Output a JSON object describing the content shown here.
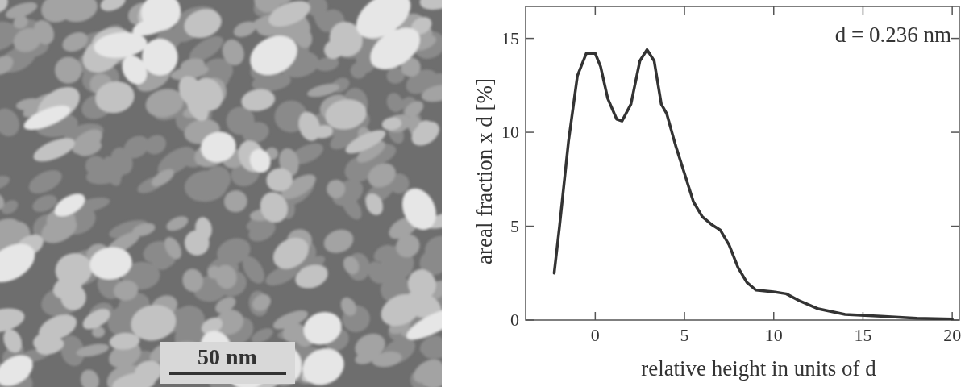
{
  "chart_data": {
    "type": "line",
    "x_label": "relative height in units of d",
    "y_label": "areal fraction x d  [%]",
    "annotation": "d = 0.236 nm",
    "x": [
      -2.3,
      -2.0,
      -1.5,
      -1.0,
      -0.5,
      0.0,
      0.3,
      0.7,
      1.2,
      1.5,
      2.0,
      2.5,
      2.9,
      3.3,
      3.7,
      4.0,
      4.5,
      5.0,
      5.5,
      6.0,
      6.5,
      7.0,
      7.5,
      8.0,
      8.5,
      9.0,
      10.0,
      10.7,
      11.5,
      12.5,
      14.0,
      16.0,
      18.0,
      20.0
    ],
    "values": [
      2.5,
      5.0,
      9.5,
      13.0,
      14.2,
      14.2,
      13.5,
      11.8,
      10.7,
      10.6,
      11.5,
      13.8,
      14.4,
      13.8,
      11.5,
      11.0,
      9.3,
      7.8,
      6.3,
      5.5,
      5.1,
      4.8,
      4.0,
      2.8,
      2.0,
      1.6,
      1.5,
      1.4,
      1.0,
      0.6,
      0.3,
      0.2,
      0.1,
      0.05
    ],
    "color": "#333333",
    "xlim": [
      -3.9,
      20.4
    ],
    "ylim": [
      0,
      16.7
    ],
    "xticks": [
      0,
      5,
      10,
      15,
      20
    ],
    "yticks": [
      0,
      5,
      10,
      15
    ],
    "grid": false
  },
  "micrograph": {
    "scale_bar_label": "50 nm"
  }
}
